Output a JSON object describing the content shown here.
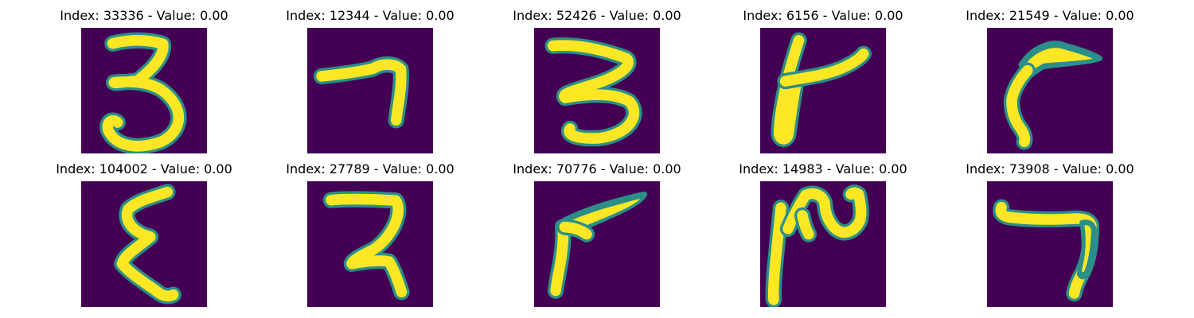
{
  "figure": {
    "background": "#ffffff",
    "colormap": "viridis",
    "image_background": "#440154",
    "image_foreground": "#fde725",
    "image_edge": "#2a8f88",
    "axes_visible": false,
    "image_resolution": "28x28",
    "grid": {
      "rows": 2,
      "columns": 5
    }
  },
  "panels": [
    {
      "title": "Index: 33336 - Value: 0.00",
      "index": 33336,
      "value": 0.0,
      "glyph": "numeral-3-shape"
    },
    {
      "title": "Index: 12344 - Value: 0.00",
      "index": 12344,
      "value": 0.0,
      "glyph": "numeral-7-shape"
    },
    {
      "title": "Index: 52426 - Value: 0.00",
      "index": 52426,
      "value": 0.0,
      "glyph": "wide-3-shape"
    },
    {
      "title": "Index: 6156 - Value: 0.00",
      "index": 6156,
      "value": 0.0,
      "glyph": "numeral-4-shape"
    },
    {
      "title": "Index: 21549 - Value: 0.00",
      "index": 21549,
      "value": 0.0,
      "glyph": "hooked-7-shape"
    },
    {
      "title": "Index: 104002 - Value: 0.00",
      "index": 104002,
      "value": 0.0,
      "glyph": "reversed-3-shape"
    },
    {
      "title": "Index: 27789 - Value: 0.00",
      "index": 27789,
      "value": 0.0,
      "glyph": "angular-3-shape"
    },
    {
      "title": "Index: 70776 - Value: 0.00",
      "index": 70776,
      "value": 0.0,
      "glyph": "wide-hook-shape"
    },
    {
      "title": "Index: 14983 - Value: 0.00",
      "index": 14983,
      "value": 0.0,
      "glyph": "wave-scribble-shape"
    },
    {
      "title": "Index: 73908 - Value: 0.00",
      "index": 73908,
      "value": 0.0,
      "glyph": "corner-7-shape"
    }
  ]
}
